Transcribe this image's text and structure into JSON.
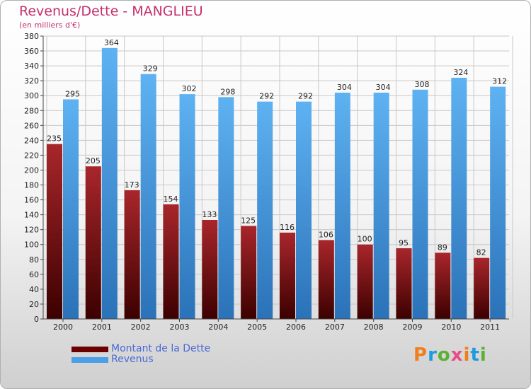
{
  "chart_data": {
    "type": "bar",
    "title": "Revenus/Dette - MANGLIEU",
    "subtitle": "(en milliers d'€)",
    "categories": [
      "2000",
      "2001",
      "2002",
      "2003",
      "2004",
      "2005",
      "2006",
      "2007",
      "2008",
      "2009",
      "2010",
      "2011"
    ],
    "series": [
      {
        "name": "Montant de la Dette",
        "values": [
          235,
          205,
          173,
          154,
          133,
          125,
          116,
          106,
          100,
          95,
          89,
          82
        ],
        "color": "#7a1212"
      },
      {
        "name": "Revenus",
        "values": [
          295,
          364,
          329,
          302,
          298,
          292,
          292,
          304,
          304,
          308,
          324,
          312
        ],
        "color": "#4a9fe6"
      }
    ],
    "ylim": [
      0,
      380
    ],
    "ytick_step": 20,
    "grid": true,
    "legend": "bottom-left"
  },
  "brand": {
    "text": "Proxiti",
    "colors": [
      "#f07d1e",
      "#1e9be0",
      "#5bb132",
      "#e84d8a"
    ]
  }
}
